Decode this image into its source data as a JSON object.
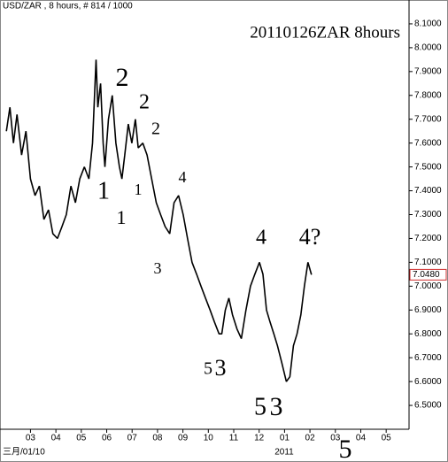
{
  "chart_data": {
    "type": "line",
    "title": "USD/ZAR , 8 hours, # 814 / 1000",
    "subtitle": "20110126ZAR 8hours",
    "date_labels": [
      "三月/01/10",
      "2011"
    ],
    "color": "#000000",
    "x": [
      0.05,
      0.19,
      0.33,
      0.47,
      0.65,
      0.82,
      1.0,
      1.18,
      1.35,
      1.53,
      1.71,
      1.88,
      2.06,
      2.24,
      2.41,
      2.59,
      2.77,
      2.94,
      3.12,
      3.3,
      3.44,
      3.58,
      3.65,
      3.76,
      3.86,
      3.93,
      4.07,
      4.22,
      4.36,
      4.5,
      4.6,
      4.71,
      4.85,
      4.99,
      5.13,
      5.24,
      5.42,
      5.59,
      5.77,
      5.95,
      6.12,
      6.3,
      6.48,
      6.65,
      6.83,
      7.01,
      7.18,
      7.36,
      7.54,
      7.71,
      7.89,
      8.07,
      8.24,
      8.42,
      8.53,
      8.67,
      8.81,
      8.95,
      9.13,
      9.3,
      9.48,
      9.66,
      9.83,
      10.01,
      10.15,
      10.29,
      10.43,
      10.58,
      10.72,
      10.89,
      11.07,
      11.21,
      11.35,
      11.49,
      11.64,
      11.78,
      11.92,
      12.06
    ],
    "values": [
      7.65,
      7.75,
      7.6,
      7.72,
      7.55,
      7.65,
      7.45,
      7.38,
      7.42,
      7.28,
      7.32,
      7.22,
      7.2,
      7.25,
      7.3,
      7.42,
      7.35,
      7.45,
      7.5,
      7.45,
      7.6,
      7.95,
      7.75,
      7.85,
      7.6,
      7.5,
      7.7,
      7.8,
      7.6,
      7.5,
      7.45,
      7.55,
      7.68,
      7.6,
      7.7,
      7.58,
      7.6,
      7.55,
      7.45,
      7.35,
      7.3,
      7.25,
      7.22,
      7.35,
      7.38,
      7.3,
      7.2,
      7.1,
      7.05,
      7.0,
      6.95,
      6.9,
      6.85,
      6.8,
      6.8,
      6.9,
      6.95,
      6.88,
      6.82,
      6.78,
      6.9,
      7.0,
      7.05,
      7.1,
      7.05,
      6.9,
      6.85,
      6.8,
      6.75,
      6.68,
      6.6,
      6.62,
      6.75,
      6.8,
      6.88,
      7.0,
      7.1,
      7.048
    ],
    "last_price": {
      "value": 7.048,
      "label": "7.0480"
    },
    "xlim": [
      -0.2,
      15.9
    ],
    "xticks": [
      {
        "value": 1,
        "label": "03"
      },
      {
        "value": 2,
        "label": "04"
      },
      {
        "value": 3,
        "label": "05"
      },
      {
        "value": 4,
        "label": "06"
      },
      {
        "value": 5,
        "label": "07"
      },
      {
        "value": 6,
        "label": "08"
      },
      {
        "value": 7,
        "label": "09"
      },
      {
        "value": 8,
        "label": "10"
      },
      {
        "value": 9,
        "label": "11"
      },
      {
        "value": 10,
        "label": "12"
      },
      {
        "value": 11,
        "label": "01"
      },
      {
        "value": 12,
        "label": "02"
      },
      {
        "value": 13,
        "label": "03"
      },
      {
        "value": 14,
        "label": "04"
      },
      {
        "value": 15,
        "label": "05"
      }
    ],
    "ylim": [
      6.4,
      8.2
    ],
    "yticks": [
      {
        "value": 6.5,
        "label": "6.5000"
      },
      {
        "value": 6.6,
        "label": "6.6000"
      },
      {
        "value": 6.7,
        "label": "6.7000"
      },
      {
        "value": 6.8,
        "label": "6.8000"
      },
      {
        "value": 6.9,
        "label": "6.9000"
      },
      {
        "value": 7.0,
        "label": "7.0000"
      },
      {
        "value": 7.1,
        "label": "7.1000"
      },
      {
        "value": 7.2,
        "label": "7.2000"
      },
      {
        "value": 7.3,
        "label": "7.3000"
      },
      {
        "value": 7.4,
        "label": "7.4000"
      },
      {
        "value": 7.5,
        "label": "7.5000"
      },
      {
        "value": 7.6,
        "label": "7.6000"
      },
      {
        "value": 7.7,
        "label": "7.7000"
      },
      {
        "value": 7.8,
        "label": "7.8000"
      },
      {
        "value": 7.9,
        "label": "7.9000"
      },
      {
        "value": 8.0,
        "label": "8.0000"
      },
      {
        "value": 8.1,
        "label": "8.1000"
      }
    ],
    "annotations": [
      {
        "text": "2",
        "color": "#4a4ec8"
      },
      {
        "text": "1",
        "color": "#4a4ec8"
      },
      {
        "text": "2",
        "color": "#e03030"
      },
      {
        "text": "2",
        "color": "#3aa845"
      },
      {
        "text": "1",
        "color": "#3aa845"
      },
      {
        "text": "1",
        "color": "#e03030"
      },
      {
        "text": "4",
        "color": "#3aa845"
      },
      {
        "text": "3",
        "color": "#3aa845"
      },
      {
        "text": "4",
        "color": "#e03030"
      },
      {
        "text": "4?",
        "color": "#4a4ec8"
      },
      {
        "text": "5",
        "color": "#3aa845"
      },
      {
        "text": "3",
        "color": "#e03030"
      },
      {
        "text": "5",
        "color": "#e03030"
      },
      {
        "text": "3",
        "color": "#4a4ec8"
      },
      {
        "text": "5",
        "color": "#4a4ec8"
      }
    ]
  }
}
